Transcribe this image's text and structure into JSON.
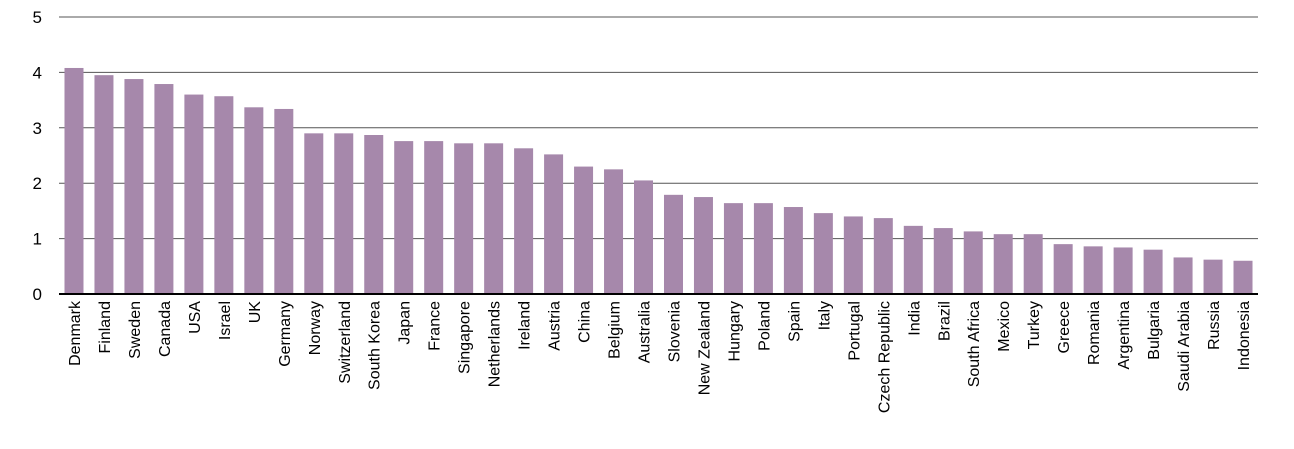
{
  "chart_data": {
    "type": "bar",
    "title": "",
    "xlabel": "",
    "ylabel": "",
    "ylim": [
      0,
      5
    ],
    "yticks": [
      0,
      1,
      2,
      3,
      4,
      5
    ],
    "grid": true,
    "bar_color": "#a688ab",
    "categories": [
      "Denmark",
      "Finland",
      "Sweden",
      "Canada",
      "USA",
      "Israel",
      "UK",
      "Germany",
      "Norway",
      "Switzerland",
      "South Korea",
      "Japan",
      "France",
      "Singapore",
      "Netherlands",
      "Ireland",
      "Austria",
      "China",
      "Belgium",
      "Australia",
      "Slovenia",
      "New Zealand",
      "Hungary",
      "Poland",
      "Spain",
      "Italy",
      "Portugal",
      "Czech Republic",
      "India",
      "Brazil",
      "South Africa",
      "Mexico",
      "Turkey",
      "Greece",
      "Romania",
      "Argentina",
      "Bulgaria",
      "Saudi Arabia",
      "Russia",
      "Indonesia"
    ],
    "values": [
      4.08,
      3.95,
      3.88,
      3.79,
      3.6,
      3.57,
      3.37,
      3.34,
      2.9,
      2.9,
      2.87,
      2.76,
      2.76,
      2.72,
      2.72,
      2.63,
      2.52,
      2.3,
      2.25,
      2.05,
      1.79,
      1.75,
      1.64,
      1.64,
      1.57,
      1.46,
      1.4,
      1.37,
      1.23,
      1.19,
      1.13,
      1.08,
      1.08,
      0.9,
      0.86,
      0.84,
      0.8,
      0.66,
      0.62,
      0.6
    ]
  }
}
